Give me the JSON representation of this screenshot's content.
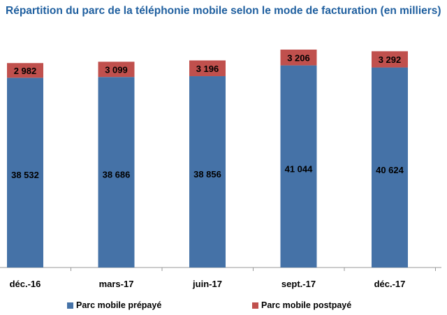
{
  "chart_data": {
    "type": "bar",
    "stacked": true,
    "title": "Répartition du parc de la téléphonie mobile selon le mode de facturation (en milliers)",
    "categories": [
      "déc.-16",
      "mars-17",
      "juin-17",
      "sept.-17",
      "déc.-17"
    ],
    "series": [
      {
        "name": "Parc mobile prépayé",
        "values": [
          38532,
          38686,
          38856,
          41044,
          40624
        ],
        "labels": [
          "38 532",
          "38 686",
          "38 856",
          "41 044",
          "40 624"
        ],
        "color": "#4572a7"
      },
      {
        "name": "Parc mobile postpayé",
        "values": [
          2982,
          3099,
          3196,
          3206,
          3292
        ],
        "labels": [
          "2 982",
          "3 099",
          "3 196",
          "3 206",
          "3 292"
        ],
        "color": "#c0504d"
      }
    ],
    "grid": false,
    "legend": "bottom"
  }
}
